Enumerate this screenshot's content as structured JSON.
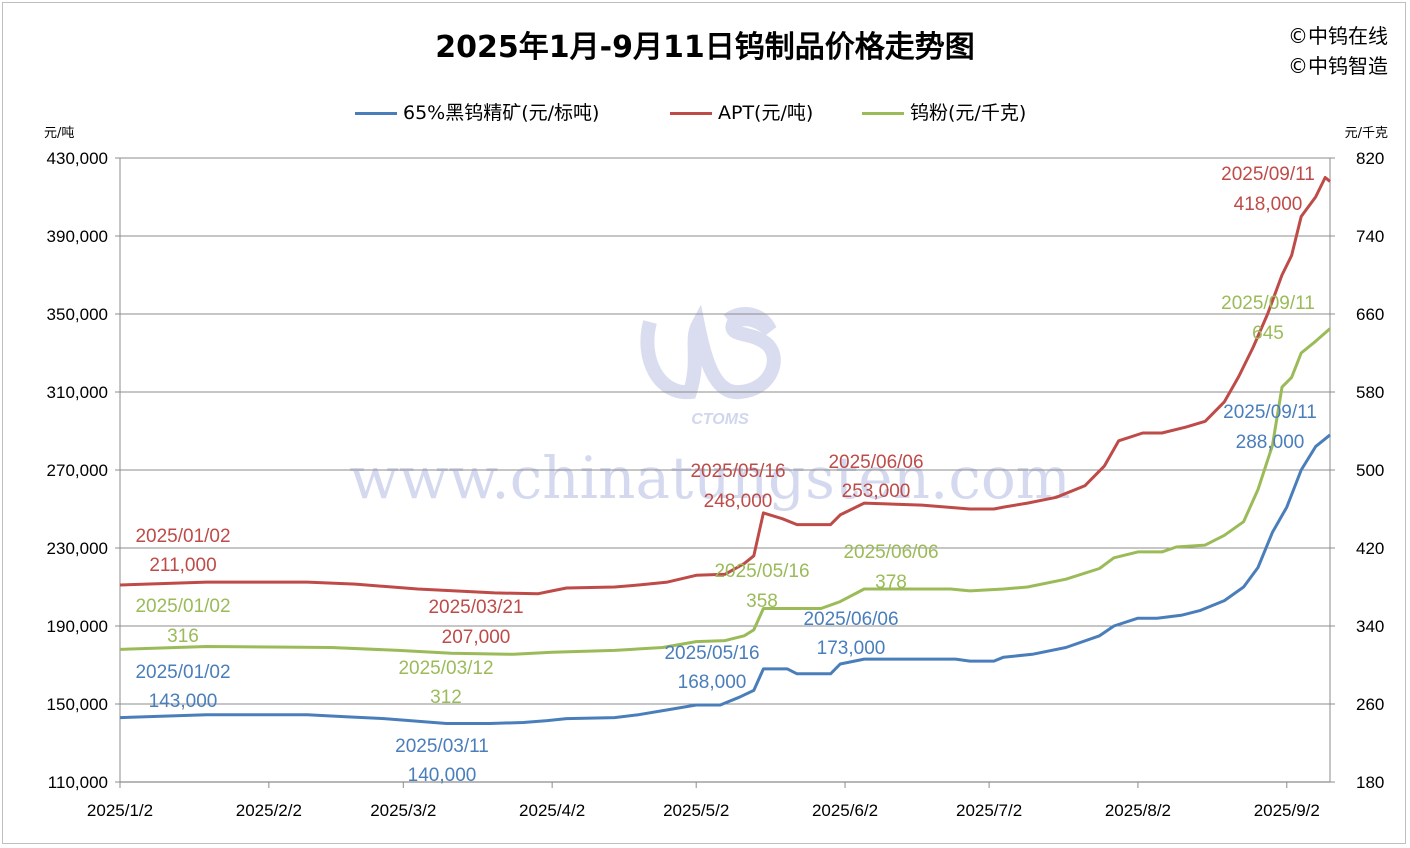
{
  "header": {
    "title": "2025年1月-9月11日钨制品价格走势图",
    "brand_lines": [
      "©中钨在线",
      "©中钨智造"
    ]
  },
  "units": {
    "left": "元/吨",
    "right": "元/千克"
  },
  "watermark": {
    "logo_text": "CTOMS",
    "site": "www.chinatungsten.com"
  },
  "chart_data": {
    "type": "line",
    "title": "2025年1月-9月11日钨制品价格走势图",
    "x_axis": {
      "tick_labels": [
        "2025/1/2",
        "2025/2/2",
        "2025/3/2",
        "2025/4/2",
        "2025/5/2",
        "2025/6/2",
        "2025/7/2",
        "2025/8/2",
        "2025/9/2"
      ],
      "range": [
        "2025/1/2",
        "2025/9/11"
      ]
    },
    "y_left": {
      "unit": "元/吨",
      "range": [
        110000,
        430000
      ],
      "ticks": [
        110000,
        150000,
        190000,
        230000,
        270000,
        310000,
        350000,
        390000,
        430000
      ],
      "tick_labels": [
        "110,000",
        "150,000",
        "190,000",
        "230,000",
        "270,000",
        "310,000",
        "350,000",
        "390,000",
        "430,000"
      ]
    },
    "y_right": {
      "unit": "元/千克",
      "range": [
        180,
        820
      ],
      "ticks": [
        180,
        260,
        340,
        420,
        500,
        580,
        660,
        740,
        820
      ],
      "tick_labels": [
        "180",
        "260",
        "340",
        "420",
        "500",
        "580",
        "660",
        "740",
        "820"
      ]
    },
    "grid": "horizontal",
    "legend_position": "top",
    "series": [
      {
        "name": "65%黑钨精矿(元/标吨)",
        "axis": "left",
        "color": "#4a7ebb",
        "points": [
          [
            "2025-01-02",
            143000
          ],
          [
            "2025-01-20",
            144500
          ],
          [
            "2025-02-10",
            144500
          ],
          [
            "2025-02-18",
            143500
          ],
          [
            "2025-02-26",
            142500
          ],
          [
            "2025-03-11",
            140000
          ],
          [
            "2025-03-20",
            140000
          ],
          [
            "2025-03-27",
            140500
          ],
          [
            "2025-04-01",
            141500
          ],
          [
            "2025-04-05",
            142500
          ],
          [
            "2025-04-15",
            143000
          ],
          [
            "2025-04-20",
            144500
          ],
          [
            "2025-04-26",
            147000
          ],
          [
            "2025-05-02",
            149500
          ],
          [
            "2025-05-07",
            149500
          ],
          [
            "2025-05-11",
            153500
          ],
          [
            "2025-05-14",
            157000
          ],
          [
            "2025-05-16",
            168000
          ],
          [
            "2025-05-21",
            168000
          ],
          [
            "2025-05-23",
            165500
          ],
          [
            "2025-05-30",
            165500
          ],
          [
            "2025-06-01",
            170500
          ],
          [
            "2025-06-06",
            173000
          ],
          [
            "2025-06-25",
            173000
          ],
          [
            "2025-06-28",
            172000
          ],
          [
            "2025-07-03",
            172000
          ],
          [
            "2025-07-05",
            174000
          ],
          [
            "2025-07-11",
            175500
          ],
          [
            "2025-07-18",
            179000
          ],
          [
            "2025-07-25",
            185000
          ],
          [
            "2025-07-28",
            190000
          ],
          [
            "2025-08-02",
            194000
          ],
          [
            "2025-08-06",
            194000
          ],
          [
            "2025-08-11",
            195500
          ],
          [
            "2025-08-15",
            198000
          ],
          [
            "2025-08-20",
            203000
          ],
          [
            "2025-08-24",
            210000
          ],
          [
            "2025-08-27",
            220000
          ],
          [
            "2025-08-30",
            238000
          ],
          [
            "2025-09-02",
            251000
          ],
          [
            "2025-09-05",
            270000
          ],
          [
            "2025-09-08",
            282000
          ],
          [
            "2025-09-11",
            288000
          ]
        ],
        "annotations": [
          {
            "date": "2025/01/02",
            "value": "143,000"
          },
          {
            "date": "2025/03/11",
            "value": "140,000"
          },
          {
            "date": "2025/05/16",
            "value": "168,000"
          },
          {
            "date": "2025/06/06",
            "value": "173,000"
          },
          {
            "date": "2025/09/11",
            "value": "288,000"
          }
        ]
      },
      {
        "name": "APT(元/吨)",
        "axis": "left",
        "color": "#be4b48",
        "points": [
          [
            "2025-01-02",
            211000
          ],
          [
            "2025-01-20",
            212500
          ],
          [
            "2025-02-10",
            212500
          ],
          [
            "2025-02-20",
            211500
          ],
          [
            "2025-03-05",
            209000
          ],
          [
            "2025-03-21",
            207000
          ],
          [
            "2025-03-30",
            206500
          ],
          [
            "2025-04-02",
            208000
          ],
          [
            "2025-04-05",
            209500
          ],
          [
            "2025-04-15",
            210000
          ],
          [
            "2025-04-20",
            211000
          ],
          [
            "2025-04-26",
            212500
          ],
          [
            "2025-05-02",
            216000
          ],
          [
            "2025-05-08",
            216500
          ],
          [
            "2025-05-12",
            222000
          ],
          [
            "2025-05-14",
            226000
          ],
          [
            "2025-05-16",
            248000
          ],
          [
            "2025-05-20",
            245000
          ],
          [
            "2025-05-23",
            242000
          ],
          [
            "2025-05-30",
            242000
          ],
          [
            "2025-06-01",
            247000
          ],
          [
            "2025-06-06",
            253000
          ],
          [
            "2025-06-18",
            252000
          ],
          [
            "2025-06-28",
            250000
          ],
          [
            "2025-07-03",
            250000
          ],
          [
            "2025-07-05",
            251000
          ],
          [
            "2025-07-10",
            253000
          ],
          [
            "2025-07-16",
            256000
          ],
          [
            "2025-07-22",
            262000
          ],
          [
            "2025-07-26",
            272000
          ],
          [
            "2025-07-29",
            285000
          ],
          [
            "2025-08-03",
            289000
          ],
          [
            "2025-08-07",
            289000
          ],
          [
            "2025-08-12",
            292000
          ],
          [
            "2025-08-16",
            295000
          ],
          [
            "2025-08-20",
            305000
          ],
          [
            "2025-08-23",
            318000
          ],
          [
            "2025-08-26",
            333000
          ],
          [
            "2025-08-29",
            350000
          ],
          [
            "2025-09-01",
            370000
          ],
          [
            "2025-09-03",
            380000
          ],
          [
            "2025-09-05",
            400000
          ],
          [
            "2025-09-08",
            410000
          ],
          [
            "2025-09-10",
            420000
          ],
          [
            "2025-09-11",
            418000
          ]
        ],
        "annotations": [
          {
            "date": "2025/01/02",
            "value": "211,000"
          },
          {
            "date": "2025/03/21",
            "value": "207,000"
          },
          {
            "date": "2025/05/16",
            "value": "248,000"
          },
          {
            "date": "2025/06/06",
            "value": "253,000"
          },
          {
            "date": "2025/09/11",
            "value": "418,000"
          }
        ]
      },
      {
        "name": "钨粉(元/千克)",
        "axis": "right",
        "color": "#9bbb59",
        "points": [
          [
            "2025-01-02",
            316
          ],
          [
            "2025-01-20",
            319
          ],
          [
            "2025-02-15",
            318
          ],
          [
            "2025-03-01",
            315
          ],
          [
            "2025-03-12",
            312
          ],
          [
            "2025-03-25",
            311
          ],
          [
            "2025-04-02",
            313
          ],
          [
            "2025-04-15",
            315
          ],
          [
            "2025-04-25",
            318
          ],
          [
            "2025-05-02",
            324
          ],
          [
            "2025-05-08",
            325
          ],
          [
            "2025-05-12",
            330
          ],
          [
            "2025-05-14",
            336
          ],
          [
            "2025-05-16",
            358
          ],
          [
            "2025-05-28",
            358
          ],
          [
            "2025-06-01",
            365
          ],
          [
            "2025-06-06",
            378
          ],
          [
            "2025-06-24",
            378
          ],
          [
            "2025-06-28",
            376
          ],
          [
            "2025-07-05",
            378
          ],
          [
            "2025-07-10",
            380
          ],
          [
            "2025-07-18",
            388
          ],
          [
            "2025-07-25",
            399
          ],
          [
            "2025-07-28",
            410
          ],
          [
            "2025-08-02",
            416
          ],
          [
            "2025-08-07",
            416
          ],
          [
            "2025-08-10",
            421
          ],
          [
            "2025-08-16",
            423
          ],
          [
            "2025-08-20",
            433
          ],
          [
            "2025-08-24",
            447
          ],
          [
            "2025-08-27",
            480
          ],
          [
            "2025-08-30",
            525
          ],
          [
            "2025-09-01",
            585
          ],
          [
            "2025-09-03",
            595
          ],
          [
            "2025-09-05",
            620
          ],
          [
            "2025-09-08",
            632
          ],
          [
            "2025-09-11",
            645
          ]
        ],
        "annotations": [
          {
            "date": "2025/01/02",
            "value": "316"
          },
          {
            "date": "2025/03/12",
            "value": "312"
          },
          {
            "date": "2025/05/16",
            "value": "358"
          },
          {
            "date": "2025/06/06",
            "value": "378"
          },
          {
            "date": "2025/09/11",
            "value": "645"
          }
        ]
      }
    ]
  }
}
